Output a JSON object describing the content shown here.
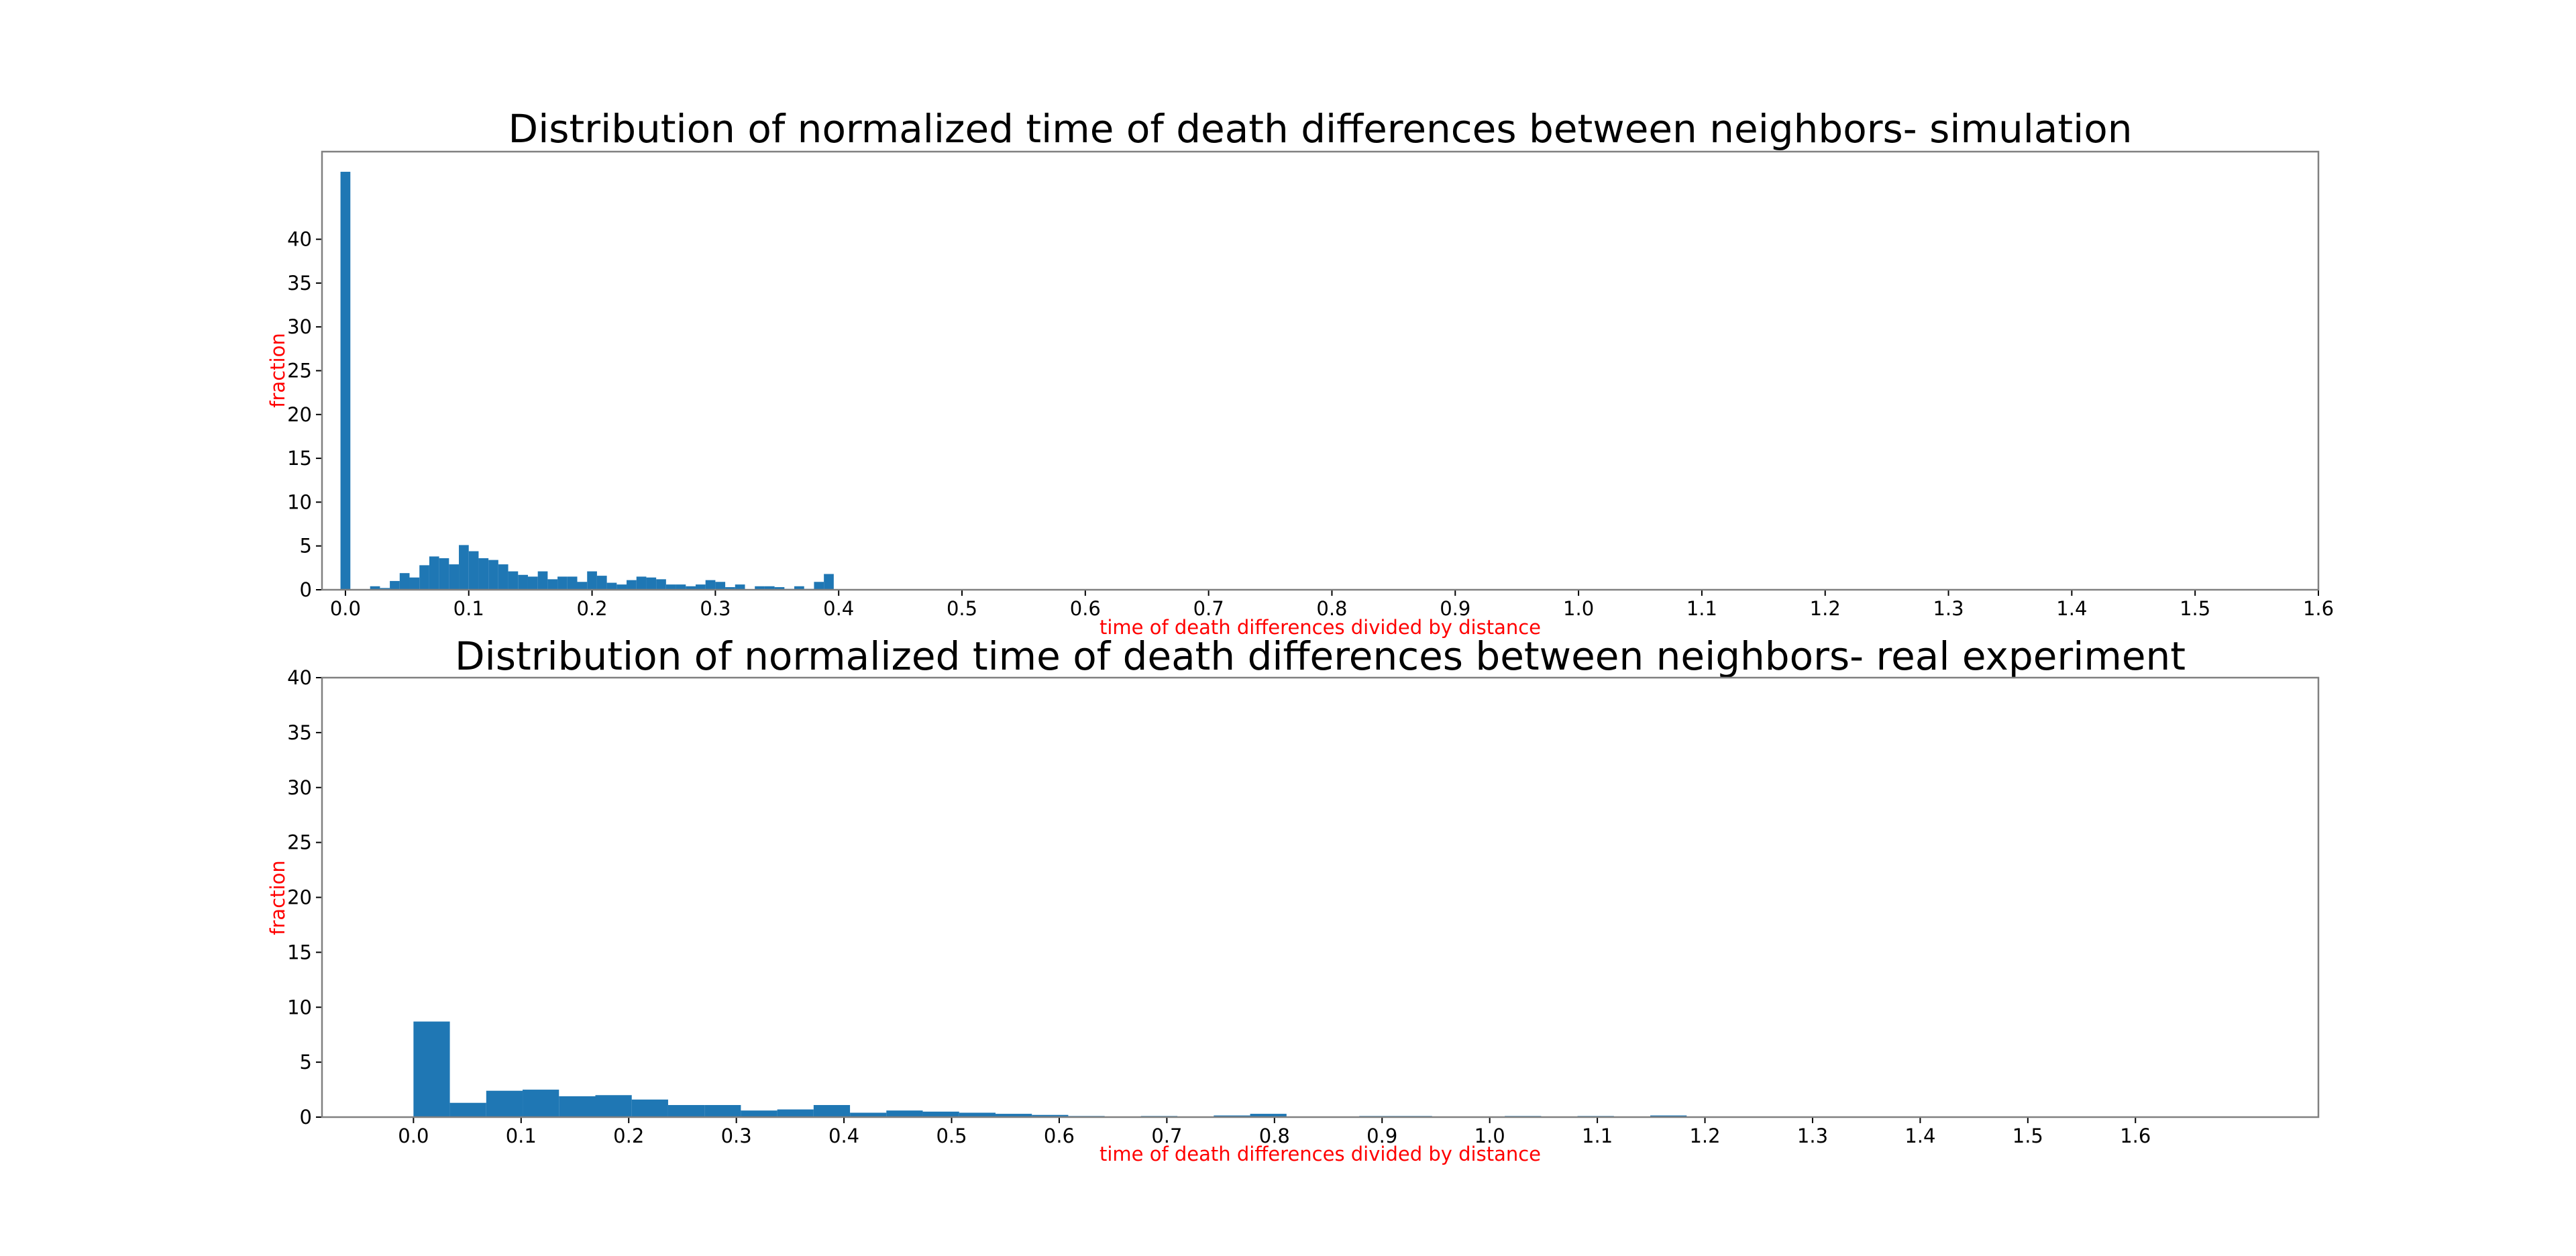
{
  "chart_data": [
    {
      "type": "bar",
      "title": "Distribution of normalized time of death differences between neighbors- simulation",
      "xlabel": "time of death differences divided by distance",
      "ylabel": "fraction",
      "xlim": [
        -0.019,
        1.6
      ],
      "ylim": [
        0,
        50
      ],
      "xticks": [
        "0.0",
        "0.1",
        "0.2",
        "0.3",
        "0.4",
        "0.5",
        "0.6",
        "0.7",
        "0.8",
        "0.9",
        "1.0",
        "1.1",
        "1.2",
        "1.3",
        "1.4",
        "1.5",
        "1.6"
      ],
      "yticks": [
        "0",
        "5",
        "10",
        "15",
        "20",
        "25",
        "30",
        "35",
        "40"
      ],
      "bar_color": "#1f77b4",
      "axis_label_color": "#ff0000",
      "grid": false,
      "bin_width": 0.008,
      "bin_start": -0.004,
      "values": [
        47.7,
        0,
        0,
        0.4,
        0.2,
        1.0,
        1.9,
        1.4,
        2.8,
        3.8,
        3.6,
        2.9,
        5.1,
        4.4,
        3.6,
        3.4,
        2.9,
        2.1,
        1.7,
        1.5,
        2.1,
        1.2,
        1.5,
        1.5,
        0.9,
        2.1,
        1.6,
        0.8,
        0.6,
        1.1,
        1.5,
        1.4,
        1.2,
        0.6,
        0.6,
        0.4,
        0.6,
        1.1,
        0.9,
        0.3,
        0.6,
        0,
        0.4,
        0.4,
        0.3,
        0.1,
        0.4,
        0.1,
        0.9,
        1.8
      ]
    },
    {
      "type": "bar",
      "title": "Distribution of normalized time of death differences between neighbors- real experiment",
      "xlabel": "time of death differences divided by distance",
      "ylabel": "fraction",
      "xlim": [
        -0.085,
        1.77
      ],
      "ylim": [
        0,
        40
      ],
      "xticks": [
        "0.0",
        "0.1",
        "0.2",
        "0.3",
        "0.4",
        "0.5",
        "0.6",
        "0.7",
        "0.8",
        "0.9",
        "1.0",
        "1.1",
        "1.2",
        "1.3",
        "1.4",
        "1.5",
        "1.6"
      ],
      "yticks": [
        "0",
        "5",
        "10",
        "15",
        "20",
        "25",
        "30",
        "35",
        "40"
      ],
      "bar_color": "#1f77b4",
      "axis_label_color": "#ff0000",
      "grid": false,
      "bin_width": 0.0338,
      "bin_start": 0,
      "values": [
        8.7,
        1.3,
        2.4,
        2.5,
        1.9,
        2.0,
        1.6,
        1.1,
        1.1,
        0.6,
        0.7,
        1.1,
        0.4,
        0.6,
        0.5,
        0.4,
        0.3,
        0.2,
        0.1,
        0.05,
        0.1,
        0.05,
        0.15,
        0.3,
        0.05,
        0.05,
        0.1,
        0.1,
        0.05,
        0.05,
        0.1,
        0.05,
        0.1,
        0.05,
        0.15,
        0.05,
        0.05,
        0.05,
        0.05,
        0.05,
        0.05,
        0.05,
        0.05,
        0.05,
        0.05,
        0.05,
        0.05,
        0.05,
        0.05
      ]
    }
  ]
}
